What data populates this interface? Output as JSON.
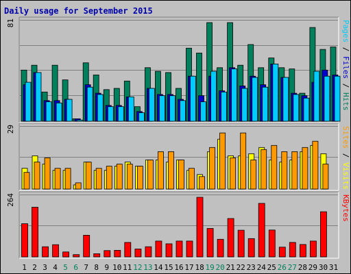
{
  "chart_data": [
    {
      "type": "bar",
      "panel": "top",
      "title": "Daily usage for September 2015",
      "ymax_label": "81",
      "ymax": 81,
      "right_labels": [
        "Pages",
        "Files",
        "Hits"
      ],
      "right_colors": [
        "#00ccff",
        "#0000cc",
        "#00805c"
      ],
      "categories": [
        "1",
        "2",
        "3",
        "4",
        "5",
        "6",
        "7",
        "8",
        "9",
        "10",
        "11",
        "12",
        "13",
        "14",
        "15",
        "16",
        "17",
        "18",
        "19",
        "20",
        "21",
        "22",
        "23",
        "24",
        "25",
        "26",
        "27",
        "28",
        "29",
        "30",
        "31"
      ],
      "series": [
        {
          "name": "Hits",
          "color": "#00805c",
          "values": [
            42,
            46,
            24,
            46,
            34,
            2,
            48,
            38,
            26,
            27,
            33,
            12,
            44,
            41,
            40,
            27,
            60,
            56,
            81,
            44,
            81,
            46,
            63,
            44,
            52,
            44,
            43,
            23,
            77,
            59,
            61
          ]
        },
        {
          "name": "Files",
          "color": "#0000cc",
          "values": [
            30,
            40,
            17,
            17,
            18,
            2,
            30,
            23,
            13,
            13,
            20,
            8,
            27,
            22,
            22,
            18,
            37,
            21,
            37,
            25,
            44,
            29,
            37,
            30,
            47,
            36,
            23,
            21,
            32,
            42,
            38
          ]
        },
        {
          "name": "Pages",
          "color": "#00ccff",
          "values": [
            32,
            40,
            16,
            15,
            18,
            1,
            28,
            22,
            12,
            12,
            20,
            7,
            27,
            21,
            21,
            17,
            37,
            16,
            41,
            24,
            43,
            27,
            36,
            28,
            47,
            36,
            22,
            19,
            41,
            37,
            37
          ]
        }
      ]
    },
    {
      "type": "bar",
      "panel": "middle",
      "ymax_label": "29",
      "ymax": 29,
      "right_labels": [
        "Sites",
        "Visits"
      ],
      "right_colors": [
        "#ff9900",
        "#ffff00"
      ],
      "categories": [
        "1",
        "2",
        "3",
        "4",
        "5",
        "6",
        "7",
        "8",
        "9",
        "10",
        "11",
        "12",
        "13",
        "14",
        "15",
        "16",
        "17",
        "18",
        "19",
        "20",
        "21",
        "22",
        "23",
        "24",
        "25",
        "26",
        "27",
        "28",
        "29",
        "30",
        "31"
      ],
      "series": [
        {
          "name": "Visits",
          "color": "#ffff00",
          "values": [
            10,
            16,
            12,
            9,
            9,
            2,
            13,
            9,
            9,
            11,
            13,
            11,
            14,
            14,
            13,
            14,
            9,
            7,
            18,
            24,
            16,
            16,
            17,
            20,
            14,
            13,
            14,
            18,
            21,
            17,
            0
          ]
        },
        {
          "name": "Sites",
          "color": "#ff9900",
          "values": [
            8,
            13,
            15,
            10,
            10,
            3,
            13,
            10,
            11,
            12,
            12,
            11,
            14,
            18,
            18,
            14,
            10,
            6,
            20,
            27,
            15,
            27,
            14,
            19,
            21,
            18,
            18,
            20,
            23,
            12,
            0
          ]
        }
      ]
    },
    {
      "type": "bar",
      "panel": "bottom",
      "ymax_label": "264",
      "ymax": 264,
      "right_labels": [
        "KBytes"
      ],
      "right_colors": [
        "#ff0000"
      ],
      "categories": [
        "1",
        "2",
        "3",
        "4",
        "5",
        "6",
        "7",
        "8",
        "9",
        "10",
        "11",
        "12",
        "13",
        "14",
        "15",
        "16",
        "17",
        "18",
        "19",
        "20",
        "21",
        "22",
        "23",
        "24",
        "25",
        "26",
        "27",
        "28",
        "29",
        "30",
        "31"
      ],
      "weekend_days": [
        "5",
        "6",
        "12",
        "13",
        "19",
        "20",
        "26",
        "27"
      ],
      "weekend_color": "#00805c",
      "series": [
        {
          "name": "KBytes",
          "color": "#ff0000",
          "values": [
            147,
            220,
            45,
            54,
            22,
            10,
            96,
            14,
            28,
            29,
            64,
            35,
            45,
            70,
            58,
            70,
            70,
            264,
            126,
            78,
            170,
            118,
            81,
            237,
            119,
            43,
            64,
            55,
            70,
            200,
            0
          ]
        }
      ]
    }
  ]
}
